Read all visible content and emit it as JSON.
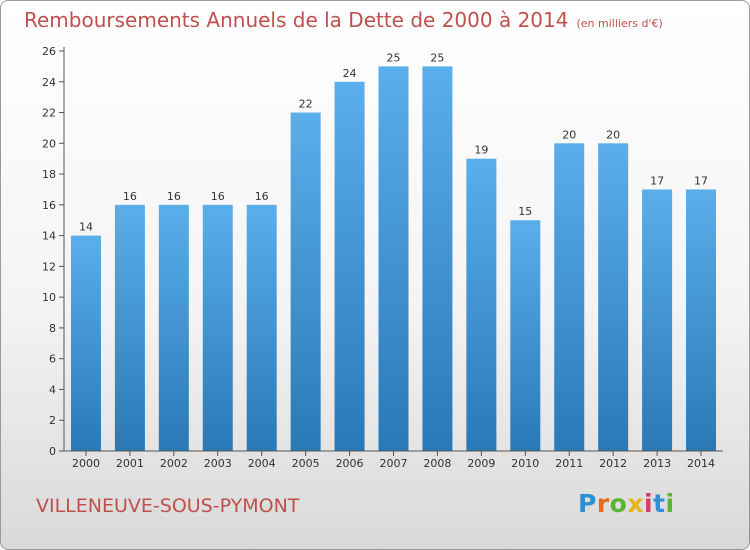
{
  "title": "Remboursements Annuels de la Dette de 2000 à 2014",
  "unit": "(en milliers d'€)",
  "commune": "VILLENEUVE-SOUS-PYMONT",
  "logo": {
    "letters": [
      "P",
      "r",
      "o",
      "x",
      "i",
      "t",
      "i"
    ],
    "colors": [
      "#2b8fd4",
      "#e86a1a",
      "#58b52f",
      "#e3b31c",
      "#d43a6a",
      "#2b8fd4",
      "#58b52f"
    ]
  },
  "colors": {
    "bar_top": "#5aaeea",
    "bar_bottom": "#2a79b6",
    "title": "#c0504d"
  },
  "chart_data": {
    "type": "bar",
    "categories": [
      "2000",
      "2001",
      "2002",
      "2003",
      "2004",
      "2005",
      "2006",
      "2007",
      "2008",
      "2009",
      "2010",
      "2011",
      "2012",
      "2013",
      "2014"
    ],
    "values": [
      14,
      16,
      16,
      16,
      16,
      22,
      24,
      25,
      25,
      19,
      15,
      20,
      20,
      17,
      17
    ],
    "ylim": [
      0,
      26
    ],
    "yticks": [
      0,
      2,
      4,
      6,
      8,
      10,
      12,
      14,
      16,
      18,
      20,
      22,
      24,
      26
    ],
    "grid": false
  }
}
